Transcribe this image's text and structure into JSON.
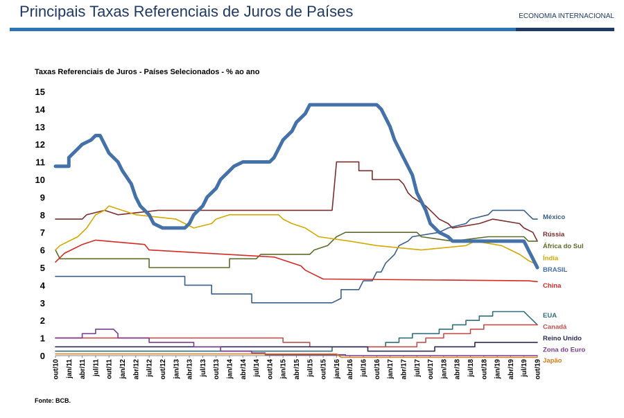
{
  "header": {
    "title": "Principais Taxas Referenciais de Juros de Países",
    "section": "ECONOMIA INTERNACIONAL"
  },
  "footer": {
    "source": "Fonte: BCB."
  },
  "chart_data": {
    "type": "line",
    "title": "Taxas Referenciais de Juros - Países Selecionados - % ao ano",
    "xlabel": "",
    "ylabel": "",
    "ylim": [
      0,
      15
    ],
    "yticks": [
      "0",
      "1",
      "2",
      "3",
      "4",
      "5",
      "6",
      "7",
      "8",
      "9",
      "10",
      "11",
      "12",
      "13",
      "14",
      "15"
    ],
    "x_range": [
      "2010-10",
      "2019-10"
    ],
    "x_ticks": [
      "out/10",
      "jan/11",
      "abr/11",
      "jul/11",
      "out/11",
      "jan/12",
      "abr/12",
      "jul/12",
      "out/12",
      "jan/13",
      "abr/13",
      "jul/13",
      "out/13",
      "jan/14",
      "abr/14",
      "jul/14",
      "out/14",
      "jan/15",
      "abr/15",
      "jul/15",
      "out/15",
      "jan/16",
      "abr/16",
      "jul/16",
      "out/16",
      "jan/17",
      "abr/17",
      "jul/17",
      "out/17",
      "jan/18",
      "abr/18",
      "jul/18",
      "out/18",
      "jan/19",
      "abr/19",
      "jul/19",
      "out/19"
    ],
    "grid": false,
    "legend": "labels at right end of each line",
    "series": [
      {
        "name": "México",
        "color": "#3a5f8a",
        "width": 1.6,
        "label_y": 7.9,
        "points": [
          [
            "2010-10",
            4.5
          ],
          [
            "2013-03",
            4.5
          ],
          [
            "2013-03",
            4.0
          ],
          [
            "2013-09",
            4.0
          ],
          [
            "2013-09",
            3.5
          ],
          [
            "2014-06",
            3.5
          ],
          [
            "2014-06",
            3.0
          ],
          [
            "2015-12",
            3.0
          ],
          [
            "2016-02",
            3.25
          ],
          [
            "2016-02",
            3.75
          ],
          [
            "2016-06",
            3.75
          ],
          [
            "2016-07",
            4.25
          ],
          [
            "2016-09",
            4.25
          ],
          [
            "2016-10",
            4.75
          ],
          [
            "2016-11",
            4.75
          ],
          [
            "2016-12",
            5.25
          ],
          [
            "2017-02",
            5.75
          ],
          [
            "2017-03",
            6.25
          ],
          [
            "2017-05",
            6.5
          ],
          [
            "2017-06",
            6.75
          ],
          [
            "2017-12",
            7.0
          ],
          [
            "2018-02",
            7.25
          ],
          [
            "2018-06",
            7.5
          ],
          [
            "2018-07",
            7.75
          ],
          [
            "2018-11",
            8.0
          ],
          [
            "2018-12",
            8.25
          ],
          [
            "2019-07",
            8.25
          ],
          [
            "2019-08",
            8.0
          ],
          [
            "2019-09",
            7.75
          ],
          [
            "2019-10",
            7.75
          ]
        ]
      },
      {
        "name": "Rússia",
        "color": "#7b2c2c",
        "width": 1.6,
        "label_y": 6.9,
        "points": [
          [
            "2010-10",
            7.75
          ],
          [
            "2011-04",
            7.75
          ],
          [
            "2011-05",
            8.0
          ],
          [
            "2011-09",
            8.25
          ],
          [
            "2011-12",
            8.0
          ],
          [
            "2012-09",
            8.25
          ],
          [
            "2014-03",
            8.25
          ],
          [
            "2015-12",
            8.25
          ],
          [
            "2016-01",
            11.0
          ],
          [
            "2016-06",
            11.0
          ],
          [
            "2016-06",
            10.5
          ],
          [
            "2016-09",
            10.5
          ],
          [
            "2016-09",
            10.0
          ],
          [
            "2017-03",
            10.0
          ],
          [
            "2017-04",
            9.75
          ],
          [
            "2017-05",
            9.25
          ],
          [
            "2017-06",
            9.0
          ],
          [
            "2017-09",
            8.5
          ],
          [
            "2017-10",
            8.25
          ],
          [
            "2017-12",
            7.75
          ],
          [
            "2018-02",
            7.5
          ],
          [
            "2018-03",
            7.25
          ],
          [
            "2018-09",
            7.5
          ],
          [
            "2018-12",
            7.75
          ],
          [
            "2019-06",
            7.5
          ],
          [
            "2019-07",
            7.25
          ],
          [
            "2019-09",
            7.0
          ],
          [
            "2019-10",
            6.5
          ]
        ]
      },
      {
        "name": "África do Sul",
        "color": "#5b6b2a",
        "width": 1.6,
        "label_y": 6.25,
        "points": [
          [
            "2010-10",
            6.0
          ],
          [
            "2010-11",
            5.5
          ],
          [
            "2012-07",
            5.5
          ],
          [
            "2012-07",
            5.0
          ],
          [
            "2014-01",
            5.0
          ],
          [
            "2014-01",
            5.5
          ],
          [
            "2014-07",
            5.5
          ],
          [
            "2014-08",
            5.75
          ],
          [
            "2015-07",
            5.75
          ],
          [
            "2015-08",
            6.0
          ],
          [
            "2015-11",
            6.25
          ],
          [
            "2016-01",
            6.75
          ],
          [
            "2016-03",
            7.0
          ],
          [
            "2017-07",
            7.0
          ],
          [
            "2017-08",
            6.75
          ],
          [
            "2018-03",
            6.5
          ],
          [
            "2018-11",
            6.75
          ],
          [
            "2019-07",
            6.75
          ],
          [
            "2019-08",
            6.5
          ],
          [
            "2019-10",
            6.5
          ]
        ]
      },
      {
        "name": "Índia",
        "color": "#d4a800",
        "width": 1.6,
        "label_y": 5.55,
        "points": [
          [
            "2010-10",
            6.0
          ],
          [
            "2010-11",
            6.25
          ],
          [
            "2011-01",
            6.5
          ],
          [
            "2011-03",
            6.75
          ],
          [
            "2011-05",
            7.25
          ],
          [
            "2011-07",
            8.0
          ],
          [
            "2011-09",
            8.25
          ],
          [
            "2011-10",
            8.5
          ],
          [
            "2012-04",
            8.0
          ],
          [
            "2013-01",
            7.75
          ],
          [
            "2013-03",
            7.5
          ],
          [
            "2013-05",
            7.25
          ],
          [
            "2013-09",
            7.5
          ],
          [
            "2013-10",
            7.75
          ],
          [
            "2014-01",
            8.0
          ],
          [
            "2014-12",
            8.0
          ],
          [
            "2015-01",
            7.75
          ],
          [
            "2015-03",
            7.5
          ],
          [
            "2015-06",
            7.25
          ],
          [
            "2015-09",
            6.75
          ],
          [
            "2016-04",
            6.5
          ],
          [
            "2016-10",
            6.25
          ],
          [
            "2017-08",
            6.0
          ],
          [
            "2018-06",
            6.25
          ],
          [
            "2018-08",
            6.5
          ],
          [
            "2019-02",
            6.25
          ],
          [
            "2019-04",
            6.0
          ],
          [
            "2019-06",
            5.75
          ],
          [
            "2019-08",
            5.4
          ],
          [
            "2019-10",
            5.15
          ]
        ]
      },
      {
        "name": "BRASIL",
        "color": "#4472a8",
        "width": 5,
        "label_y": 4.9,
        "points": [
          [
            "2010-10",
            10.75
          ],
          [
            "2011-01",
            10.75
          ],
          [
            "2011-01",
            11.25
          ],
          [
            "2011-03",
            11.75
          ],
          [
            "2011-04",
            12.0
          ],
          [
            "2011-06",
            12.25
          ],
          [
            "2011-07",
            12.5
          ],
          [
            "2011-08",
            12.5
          ],
          [
            "2011-10",
            11.5
          ],
          [
            "2011-12",
            11.0
          ],
          [
            "2012-01",
            10.5
          ],
          [
            "2012-03",
            9.75
          ],
          [
            "2012-04",
            9.0
          ],
          [
            "2012-05",
            8.5
          ],
          [
            "2012-07",
            8.0
          ],
          [
            "2012-08",
            7.5
          ],
          [
            "2012-10",
            7.25
          ],
          [
            "2013-03",
            7.25
          ],
          [
            "2013-04",
            7.5
          ],
          [
            "2013-05",
            8.0
          ],
          [
            "2013-07",
            8.5
          ],
          [
            "2013-08",
            9.0
          ],
          [
            "2013-10",
            9.5
          ],
          [
            "2013-11",
            10.0
          ],
          [
            "2014-01",
            10.5
          ],
          [
            "2014-02",
            10.75
          ],
          [
            "2014-04",
            11.0
          ],
          [
            "2014-10",
            11.0
          ],
          [
            "2014-11",
            11.25
          ],
          [
            "2015-01",
            12.25
          ],
          [
            "2015-03",
            12.75
          ],
          [
            "2015-04",
            13.25
          ],
          [
            "2015-06",
            13.75
          ],
          [
            "2015-07",
            14.25
          ],
          [
            "2016-10",
            14.25
          ],
          [
            "2016-11",
            14.0
          ],
          [
            "2017-01",
            13.0
          ],
          [
            "2017-02",
            12.25
          ],
          [
            "2017-04",
            11.25
          ],
          [
            "2017-06",
            10.25
          ],
          [
            "2017-07",
            9.25
          ],
          [
            "2017-09",
            8.25
          ],
          [
            "2017-10",
            7.5
          ],
          [
            "2017-12",
            7.0
          ],
          [
            "2018-02",
            6.75
          ],
          [
            "2018-03",
            6.5
          ],
          [
            "2019-07",
            6.5
          ],
          [
            "2019-08",
            6.0
          ],
          [
            "2019-09",
            5.5
          ],
          [
            "2019-10",
            5.0
          ]
        ]
      },
      {
        "name": "China",
        "color": "#d42a24",
        "width": 1.6,
        "label_y": 4.0,
        "points": [
          [
            "2010-10",
            5.31
          ],
          [
            "2010-12",
            5.81
          ],
          [
            "2011-02",
            6.06
          ],
          [
            "2011-04",
            6.31
          ],
          [
            "2011-07",
            6.56
          ],
          [
            "2012-06",
            6.31
          ],
          [
            "2012-07",
            6.0
          ],
          [
            "2014-11",
            5.6
          ],
          [
            "2015-02",
            5.35
          ],
          [
            "2015-05",
            5.1
          ],
          [
            "2015-06",
            4.85
          ],
          [
            "2015-08",
            4.6
          ],
          [
            "2015-10",
            4.35
          ],
          [
            "2019-08",
            4.25
          ],
          [
            "2019-10",
            4.2
          ]
        ]
      },
      {
        "name": "EUA",
        "color": "#2f6e7a",
        "width": 1.6,
        "label_y": 2.3,
        "points": [
          [
            "2010-10",
            0.25
          ],
          [
            "2015-12",
            0.25
          ],
          [
            "2015-12",
            0.5
          ],
          [
            "2016-12",
            0.5
          ],
          [
            "2016-12",
            0.75
          ],
          [
            "2017-03",
            0.75
          ],
          [
            "2017-03",
            1.0
          ],
          [
            "2017-06",
            1.0
          ],
          [
            "2017-06",
            1.25
          ],
          [
            "2017-12",
            1.25
          ],
          [
            "2017-12",
            1.5
          ],
          [
            "2018-03",
            1.5
          ],
          [
            "2018-03",
            1.75
          ],
          [
            "2018-06",
            1.75
          ],
          [
            "2018-06",
            2.0
          ],
          [
            "2018-09",
            2.0
          ],
          [
            "2018-09",
            2.25
          ],
          [
            "2018-12",
            2.25
          ],
          [
            "2018-12",
            2.5
          ],
          [
            "2019-07",
            2.5
          ],
          [
            "2019-08",
            2.25
          ],
          [
            "2019-09",
            2.0
          ],
          [
            "2019-10",
            1.75
          ]
        ]
      },
      {
        "name": "Canadá",
        "color": "#c0504d",
        "width": 1.6,
        "label_y": 1.65,
        "points": [
          [
            "2010-10",
            1.0
          ],
          [
            "2015-01",
            1.0
          ],
          [
            "2015-01",
            0.75
          ],
          [
            "2015-07",
            0.75
          ],
          [
            "2015-07",
            0.5
          ],
          [
            "2017-07",
            0.5
          ],
          [
            "2017-07",
            0.75
          ],
          [
            "2017-09",
            0.75
          ],
          [
            "2017-09",
            1.0
          ],
          [
            "2018-01",
            1.0
          ],
          [
            "2018-01",
            1.25
          ],
          [
            "2018-07",
            1.25
          ],
          [
            "2018-07",
            1.5
          ],
          [
            "2018-10",
            1.5
          ],
          [
            "2018-10",
            1.75
          ],
          [
            "2019-10",
            1.75
          ]
        ]
      },
      {
        "name": "Reino Unido",
        "color": "#2c2c54",
        "width": 1.6,
        "label_y": 1.0,
        "points": [
          [
            "2010-10",
            0.5
          ],
          [
            "2016-08",
            0.5
          ],
          [
            "2016-08",
            0.25
          ],
          [
            "2017-11",
            0.25
          ],
          [
            "2017-11",
            0.5
          ],
          [
            "2018-08",
            0.5
          ],
          [
            "2018-08",
            0.75
          ],
          [
            "2019-10",
            0.75
          ]
        ]
      },
      {
        "name": "Zona do Euro",
        "color": "#7a3d8f",
        "width": 1.6,
        "label_y": 0.35,
        "points": [
          [
            "2010-10",
            1.0
          ],
          [
            "2011-04",
            1.0
          ],
          [
            "2011-04",
            1.25
          ],
          [
            "2011-07",
            1.25
          ],
          [
            "2011-07",
            1.5
          ],
          [
            "2011-11",
            1.5
          ],
          [
            "2011-12",
            1.25
          ],
          [
            "2011-12",
            1.0
          ],
          [
            "2012-07",
            1.0
          ],
          [
            "2012-07",
            0.75
          ],
          [
            "2013-05",
            0.75
          ],
          [
            "2013-05",
            0.5
          ],
          [
            "2013-11",
            0.5
          ],
          [
            "2013-11",
            0.25
          ],
          [
            "2014-06",
            0.25
          ],
          [
            "2014-06",
            0.15
          ],
          [
            "2014-09",
            0.15
          ],
          [
            "2014-09",
            0.05
          ],
          [
            "2016-03",
            0.05
          ],
          [
            "2016-03",
            0.0
          ],
          [
            "2019-10",
            0.0
          ]
        ]
      },
      {
        "name": "Japão",
        "color": "#e07b1a",
        "width": 1.6,
        "label_y": -0.25,
        "points": [
          [
            "2010-10",
            0.1
          ],
          [
            "2016-01",
            0.1
          ],
          [
            "2016-02",
            -0.1
          ],
          [
            "2019-10",
            -0.1
          ]
        ]
      }
    ]
  }
}
